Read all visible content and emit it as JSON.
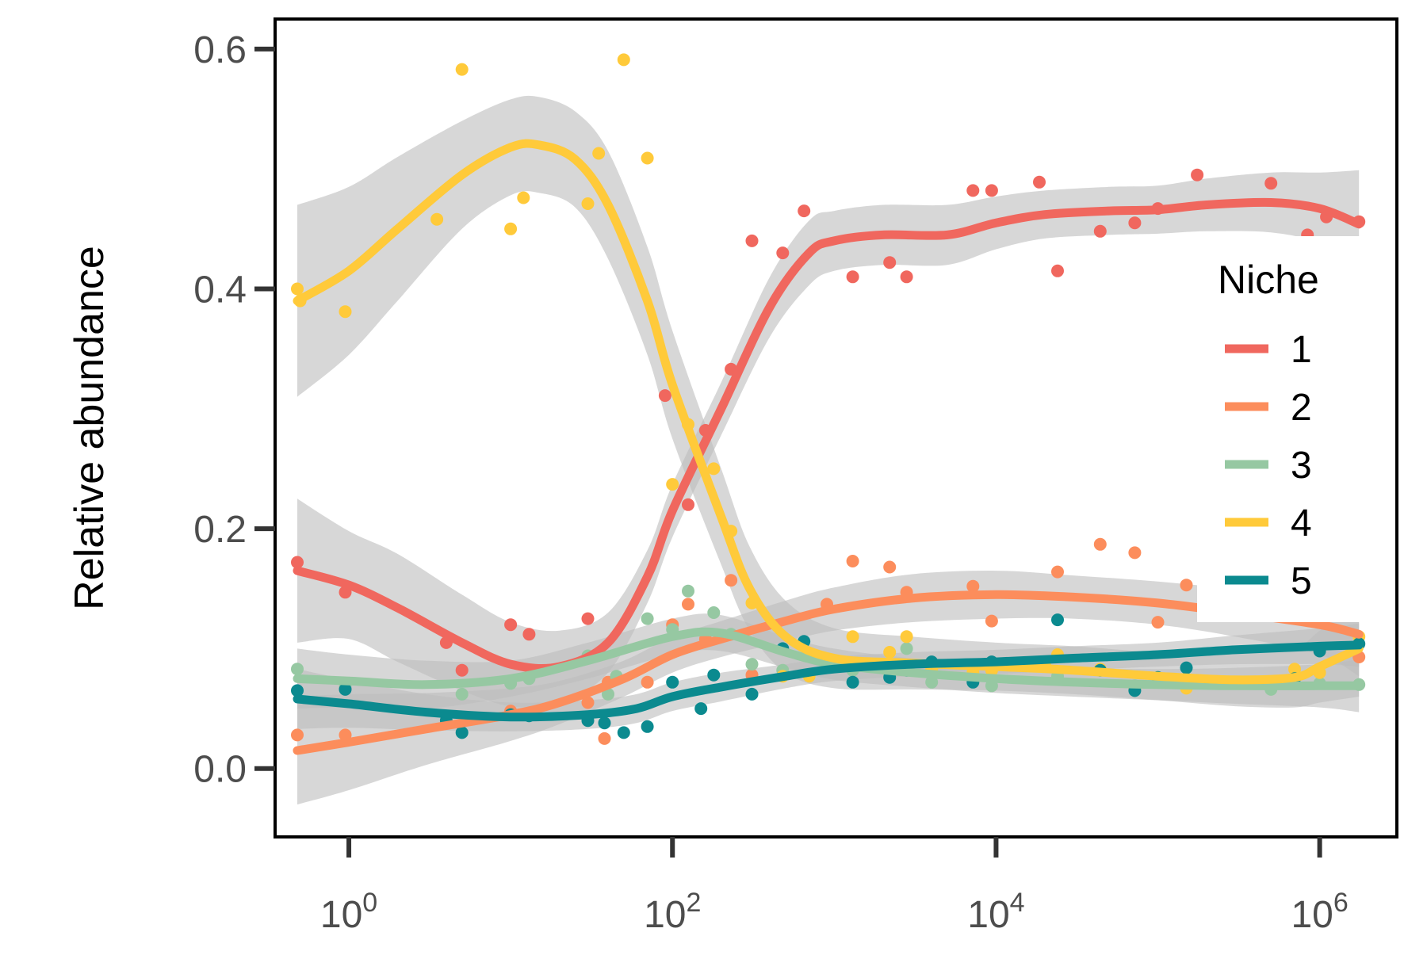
{
  "chart_data": {
    "type": "scatter",
    "ylabel": "Relative abundance",
    "xlabel": "",
    "x_scale": "log10",
    "xlim": [
      0.35,
      3000000
    ],
    "ylim": [
      -0.057,
      0.625
    ],
    "x_ticks": [
      {
        "value": 1,
        "base": "10",
        "exp": "0"
      },
      {
        "value": 100,
        "base": "10",
        "exp": "2"
      },
      {
        "value": 10000,
        "base": "10",
        "exp": "4"
      },
      {
        "value": 1000000,
        "base": "10",
        "exp": "6"
      }
    ],
    "y_ticks": [
      {
        "value": 0.0,
        "label": "0.0"
      },
      {
        "value": 0.2,
        "label": "0.2"
      },
      {
        "value": 0.4,
        "label": "0.4"
      },
      {
        "value": 0.6,
        "label": "0.6"
      }
    ],
    "grid": false,
    "legend": {
      "title": "Niche",
      "position": "right"
    },
    "band_color": "#bdbdbd",
    "series": [
      {
        "name": "1",
        "color": "#F0675E",
        "points": [
          [
            0.48,
            0.172
          ],
          [
            0.95,
            0.147
          ],
          [
            4,
            0.105
          ],
          [
            5,
            0.082
          ],
          [
            10,
            0.12
          ],
          [
            13,
            0.112
          ],
          [
            30,
            0.125
          ],
          [
            90,
            0.311
          ],
          [
            125,
            0.22
          ],
          [
            160,
            0.282
          ],
          [
            230,
            0.333
          ],
          [
            310,
            0.44
          ],
          [
            480,
            0.43
          ],
          [
            650,
            0.465
          ],
          [
            1300,
            0.41
          ],
          [
            2200,
            0.422
          ],
          [
            2800,
            0.41
          ],
          [
            7200,
            0.482
          ],
          [
            9400,
            0.482
          ],
          [
            18500,
            0.489
          ],
          [
            24000,
            0.415
          ],
          [
            44000,
            0.448
          ],
          [
            72000,
            0.455
          ],
          [
            100000,
            0.467
          ],
          [
            175000,
            0.495
          ],
          [
            500000,
            0.488
          ],
          [
            840000,
            0.445
          ],
          [
            1100000,
            0.46
          ],
          [
            1750000,
            0.456
          ]
        ],
        "fit": [
          [
            0.48,
            0.165
          ],
          [
            1,
            0.153
          ],
          [
            2,
            0.134
          ],
          [
            5,
            0.105
          ],
          [
            10,
            0.087
          ],
          [
            20,
            0.085
          ],
          [
            40,
            0.105
          ],
          [
            70,
            0.16
          ],
          [
            100,
            0.215
          ],
          [
            200,
            0.3
          ],
          [
            400,
            0.385
          ],
          [
            700,
            0.43
          ],
          [
            1000,
            0.44
          ],
          [
            2000,
            0.445
          ],
          [
            5000,
            0.445
          ],
          [
            10000,
            0.455
          ],
          [
            20000,
            0.462
          ],
          [
            50000,
            0.465
          ],
          [
            100000,
            0.466
          ],
          [
            200000,
            0.47
          ],
          [
            500000,
            0.472
          ],
          [
            1000000,
            0.467
          ],
          [
            1750000,
            0.454
          ]
        ],
        "band": [
          0.06,
          0.045,
          0.045,
          0.04,
          0.035,
          0.03,
          0.025,
          0.022,
          0.022,
          0.022,
          0.025,
          0.027,
          0.025,
          0.025,
          0.025,
          0.022,
          0.02,
          0.02,
          0.02,
          0.022,
          0.025,
          0.03,
          0.045
        ]
      },
      {
        "name": "2",
        "color": "#FC8D5C",
        "points": [
          [
            0.48,
            0.028
          ],
          [
            0.95,
            0.028
          ],
          [
            10,
            0.048
          ],
          [
            13,
            0.045
          ],
          [
            30,
            0.055
          ],
          [
            38,
            0.025
          ],
          [
            40,
            0.072
          ],
          [
            70,
            0.072
          ],
          [
            100,
            0.12
          ],
          [
            125,
            0.137
          ],
          [
            160,
            0.108
          ],
          [
            230,
            0.157
          ],
          [
            310,
            0.078
          ],
          [
            900,
            0.137
          ],
          [
            1300,
            0.173
          ],
          [
            2200,
            0.168
          ],
          [
            2800,
            0.147
          ],
          [
            7200,
            0.152
          ],
          [
            9400,
            0.123
          ],
          [
            24000,
            0.164
          ],
          [
            44000,
            0.187
          ],
          [
            72000,
            0.18
          ],
          [
            100000,
            0.122
          ],
          [
            150000,
            0.153
          ],
          [
            1750000,
            0.093
          ]
        ],
        "fit": [
          [
            0.48,
            0.015
          ],
          [
            1,
            0.022
          ],
          [
            3,
            0.033
          ],
          [
            10,
            0.045
          ],
          [
            20,
            0.055
          ],
          [
            50,
            0.075
          ],
          [
            100,
            0.095
          ],
          [
            200,
            0.108
          ],
          [
            500,
            0.123
          ],
          [
            1000,
            0.133
          ],
          [
            3000,
            0.142
          ],
          [
            10000,
            0.145
          ],
          [
            30000,
            0.143
          ],
          [
            100000,
            0.138
          ],
          [
            300000,
            0.13
          ],
          [
            1000000,
            0.12
          ],
          [
            1750000,
            0.112
          ]
        ],
        "band": [
          0.045,
          0.04,
          0.03,
          0.022,
          0.018,
          0.015,
          0.015,
          0.015,
          0.017,
          0.018,
          0.02,
          0.02,
          0.018,
          0.018,
          0.02,
          0.025,
          0.035
        ]
      },
      {
        "name": "3",
        "color": "#96C8A2",
        "points": [
          [
            0.48,
            0.083
          ],
          [
            0.95,
            0.068
          ],
          [
            5,
            0.062
          ],
          [
            10,
            0.071
          ],
          [
            13,
            0.075
          ],
          [
            30,
            0.094
          ],
          [
            40,
            0.062
          ],
          [
            45,
            0.077
          ],
          [
            70,
            0.125
          ],
          [
            100,
            0.116
          ],
          [
            125,
            0.148
          ],
          [
            180,
            0.13
          ],
          [
            230,
            0.112
          ],
          [
            310,
            0.087
          ],
          [
            480,
            0.082
          ],
          [
            900,
            0.088
          ],
          [
            1300,
            0.082
          ],
          [
            2200,
            0.078
          ],
          [
            2800,
            0.1
          ],
          [
            4000,
            0.072
          ],
          [
            9400,
            0.069
          ],
          [
            24000,
            0.077
          ],
          [
            44000,
            0.082
          ],
          [
            72000,
            0.069
          ],
          [
            100000,
            0.072
          ],
          [
            150000,
            0.069
          ],
          [
            500000,
            0.066
          ],
          [
            1000000,
            0.071
          ],
          [
            1750000,
            0.07
          ]
        ],
        "fit": [
          [
            0.48,
            0.075
          ],
          [
            1,
            0.073
          ],
          [
            3,
            0.07
          ],
          [
            10,
            0.075
          ],
          [
            30,
            0.09
          ],
          [
            100,
            0.11
          ],
          [
            200,
            0.113
          ],
          [
            500,
            0.097
          ],
          [
            1000,
            0.087
          ],
          [
            3000,
            0.08
          ],
          [
            10000,
            0.075
          ],
          [
            30000,
            0.072
          ],
          [
            100000,
            0.07
          ],
          [
            300000,
            0.069
          ],
          [
            1000000,
            0.069
          ],
          [
            1750000,
            0.069
          ]
        ],
        "band": [
          0.025,
          0.022,
          0.02,
          0.015,
          0.015,
          0.015,
          0.015,
          0.013,
          0.013,
          0.012,
          0.012,
          0.012,
          0.013,
          0.015,
          0.018,
          0.022
        ]
      },
      {
        "name": "4",
        "color": "#FFCA3A",
        "points": [
          [
            0.48,
            0.4
          ],
          [
            0.5,
            0.39
          ],
          [
            0.95,
            0.381
          ],
          [
            3.5,
            0.458
          ],
          [
            5,
            0.583
          ],
          [
            10,
            0.45
          ],
          [
            12,
            0.476
          ],
          [
            30,
            0.471
          ],
          [
            35,
            0.513
          ],
          [
            50,
            0.591
          ],
          [
            70,
            0.509
          ],
          [
            100,
            0.237
          ],
          [
            125,
            0.287
          ],
          [
            180,
            0.25
          ],
          [
            230,
            0.198
          ],
          [
            310,
            0.138
          ],
          [
            480,
            0.077
          ],
          [
            700,
            0.077
          ],
          [
            1300,
            0.11
          ],
          [
            2200,
            0.097
          ],
          [
            2800,
            0.11
          ],
          [
            4000,
            0.083
          ],
          [
            7200,
            0.08
          ],
          [
            9400,
            0.082
          ],
          [
            20000,
            0.088
          ],
          [
            24000,
            0.095
          ],
          [
            44000,
            0.083
          ],
          [
            72000,
            0.067
          ],
          [
            100000,
            0.074
          ],
          [
            150000,
            0.067
          ],
          [
            700000,
            0.083
          ],
          [
            1000000,
            0.08
          ],
          [
            1750000,
            0.11
          ]
        ],
        "fit": [
          [
            0.48,
            0.39
          ],
          [
            1,
            0.415
          ],
          [
            2,
            0.45
          ],
          [
            5,
            0.495
          ],
          [
            10,
            0.518
          ],
          [
            15,
            0.52
          ],
          [
            25,
            0.508
          ],
          [
            40,
            0.47
          ],
          [
            70,
            0.39
          ],
          [
            100,
            0.32
          ],
          [
            200,
            0.21
          ],
          [
            300,
            0.15
          ],
          [
            500,
            0.11
          ],
          [
            1000,
            0.092
          ],
          [
            3000,
            0.088
          ],
          [
            10000,
            0.085
          ],
          [
            30000,
            0.082
          ],
          [
            100000,
            0.077
          ],
          [
            300000,
            0.074
          ],
          [
            700000,
            0.076
          ],
          [
            1000000,
            0.085
          ],
          [
            1750000,
            0.1
          ]
        ],
        "band": [
          0.08,
          0.07,
          0.06,
          0.045,
          0.04,
          0.04,
          0.04,
          0.045,
          0.045,
          0.045,
          0.04,
          0.035,
          0.03,
          0.025,
          0.022,
          0.02,
          0.02,
          0.02,
          0.022,
          0.025,
          0.03,
          0.04
        ]
      },
      {
        "name": "5",
        "color": "#0B8A8F",
        "points": [
          [
            0.48,
            0.065
          ],
          [
            0.95,
            0.066
          ],
          [
            4,
            0.04
          ],
          [
            5,
            0.03
          ],
          [
            10,
            0.045
          ],
          [
            13,
            0.044
          ],
          [
            30,
            0.04
          ],
          [
            38,
            0.038
          ],
          [
            50,
            0.03
          ],
          [
            70,
            0.035
          ],
          [
            100,
            0.072
          ],
          [
            150,
            0.05
          ],
          [
            180,
            0.078
          ],
          [
            310,
            0.062
          ],
          [
            480,
            0.1
          ],
          [
            650,
            0.106
          ],
          [
            1300,
            0.072
          ],
          [
            2200,
            0.076
          ],
          [
            2800,
            0.082
          ],
          [
            4000,
            0.089
          ],
          [
            7200,
            0.072
          ],
          [
            9400,
            0.089
          ],
          [
            24000,
            0.124
          ],
          [
            44000,
            0.082
          ],
          [
            72000,
            0.065
          ],
          [
            100000,
            0.076
          ],
          [
            150000,
            0.084
          ],
          [
            700000,
            0.075
          ],
          [
            1000000,
            0.098
          ],
          [
            1750000,
            0.104
          ]
        ],
        "fit": [
          [
            0.48,
            0.058
          ],
          [
            1,
            0.054
          ],
          [
            3,
            0.047
          ],
          [
            10,
            0.043
          ],
          [
            30,
            0.045
          ],
          [
            60,
            0.05
          ],
          [
            100,
            0.06
          ],
          [
            200,
            0.068
          ],
          [
            500,
            0.077
          ],
          [
            1000,
            0.083
          ],
          [
            3000,
            0.087
          ],
          [
            10000,
            0.089
          ],
          [
            30000,
            0.092
          ],
          [
            100000,
            0.095
          ],
          [
            300000,
            0.099
          ],
          [
            1000000,
            0.102
          ],
          [
            1750000,
            0.103
          ]
        ],
        "band": [
          0.025,
          0.02,
          0.015,
          0.012,
          0.012,
          0.012,
          0.012,
          0.012,
          0.01,
          0.01,
          0.01,
          0.01,
          0.01,
          0.01,
          0.012,
          0.015,
          0.018
        ]
      }
    ]
  }
}
